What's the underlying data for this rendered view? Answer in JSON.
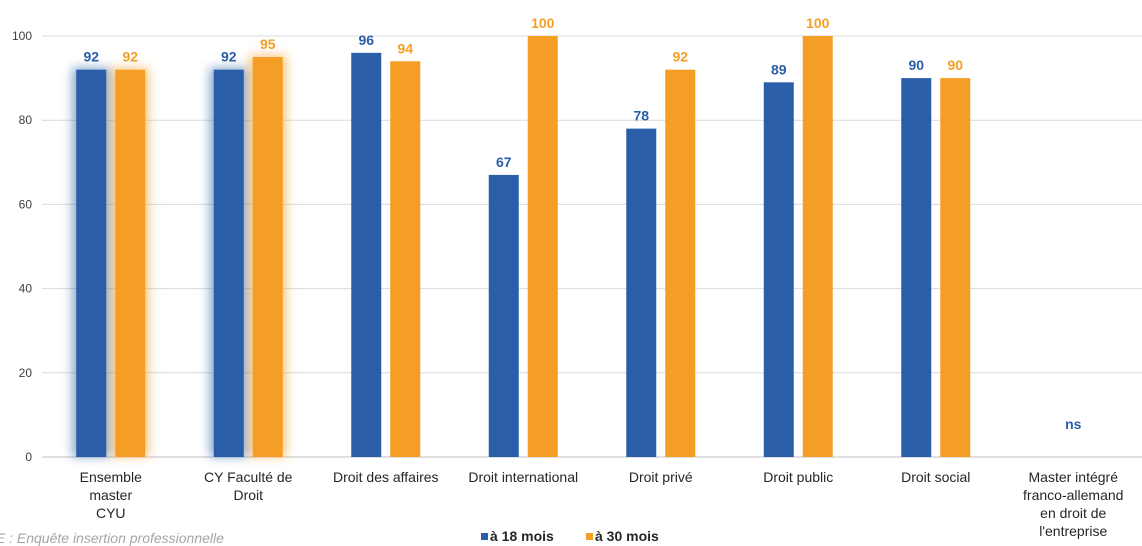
{
  "chart_data": {
    "type": "bar",
    "categories": [
      [
        "Ensemble",
        "master",
        "CYU"
      ],
      [
        "CY Faculté de",
        "Droit"
      ],
      [
        "Droit des affaires"
      ],
      [
        "Droit international"
      ],
      [
        "Droit privé"
      ],
      [
        "Droit public"
      ],
      [
        "Droit social"
      ],
      [
        "Master intégré",
        "franco-allemand",
        "en droit de",
        "l'entreprise"
      ]
    ],
    "series": [
      {
        "name": "à 18 mois",
        "color": "#2a5ea8",
        "values": [
          92,
          92,
          96,
          67,
          78,
          89,
          90,
          null
        ]
      },
      {
        "name": "à 30 mois",
        "color": "#f59e25",
        "values": [
          92,
          95,
          94,
          100,
          92,
          100,
          90,
          null
        ]
      }
    ],
    "highlighted_categories": [
      0,
      1
    ],
    "ns_label": "ns",
    "yticks": [
      0,
      20,
      40,
      60,
      80,
      100
    ],
    "ylim": [
      0,
      100
    ],
    "grid": true,
    "legend_position": "bottom",
    "note": "IE : Enquête insertion professionnelle"
  }
}
